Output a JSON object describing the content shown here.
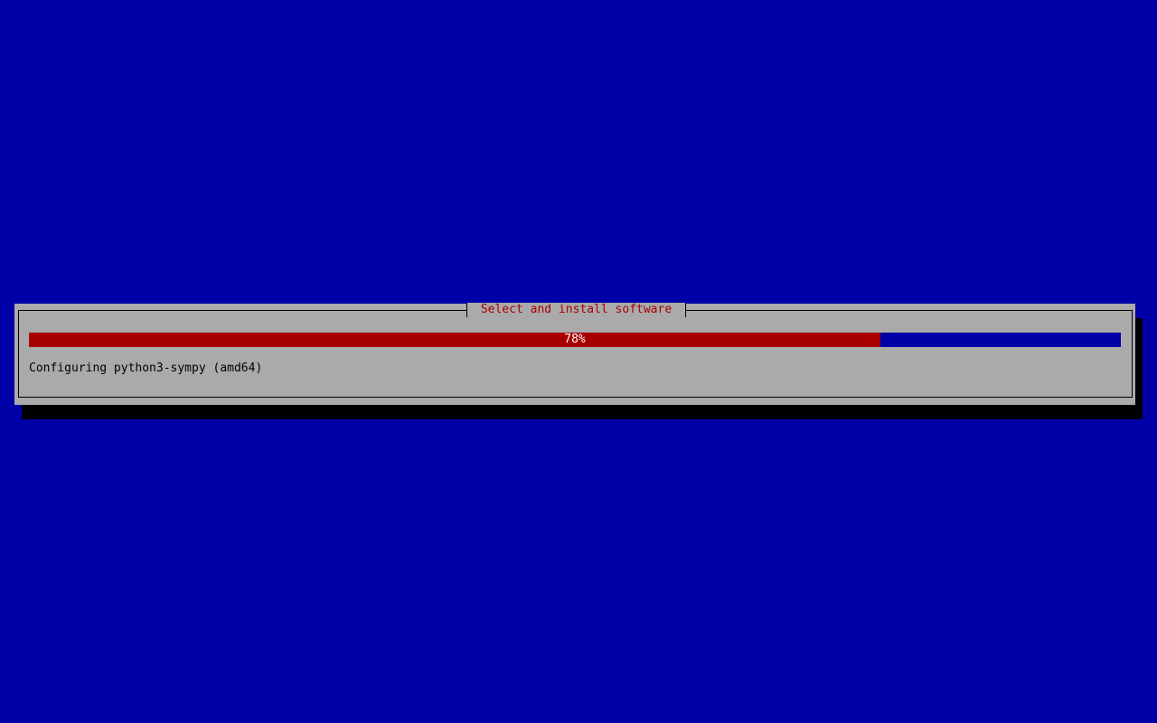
{
  "dialog": {
    "title": "Select and install software",
    "progress_percent": 78,
    "progress_label": "78%",
    "status": "Configuring python3-sympy (amd64)"
  },
  "colors": {
    "background": "#0000a8",
    "dialog": "#aaaaaa",
    "progress_fill": "#a80000",
    "title": "#a80000"
  }
}
